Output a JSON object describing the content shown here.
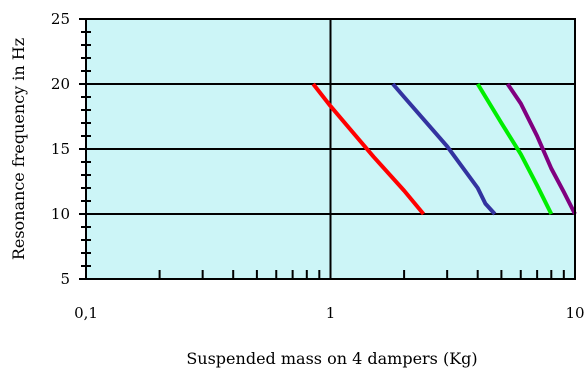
{
  "chart_data": {
    "type": "line",
    "xscale": "log",
    "xlim": [
      0.1,
      10
    ],
    "ylim": [
      5,
      25
    ],
    "xticks": [
      {
        "value": 0.1,
        "label": "0,1"
      },
      {
        "value": 1,
        "label": "1"
      },
      {
        "value": 10,
        "label": "10"
      }
    ],
    "yticks": [
      {
        "value": 5,
        "label": "5"
      },
      {
        "value": 10,
        "label": "10"
      },
      {
        "value": 15,
        "label": "15"
      },
      {
        "value": 20,
        "label": "20"
      },
      {
        "value": 25,
        "label": "25"
      }
    ],
    "xlabel": "Suspended mass on 4 dampers (Kg)",
    "ylabel": "Resonance frequency in Hz",
    "grid": "major",
    "plot_background": "#ccf5f7",
    "series": [
      {
        "color": "#ff0000",
        "points": [
          [
            0.85,
            20
          ],
          [
            1.0,
            18.3
          ],
          [
            1.5,
            14.4
          ],
          [
            2.0,
            11.8
          ],
          [
            2.4,
            10
          ]
        ]
      },
      {
        "color": "#3333a0",
        "points": [
          [
            1.8,
            20
          ],
          [
            2.0,
            19.0
          ],
          [
            3.0,
            15.2
          ],
          [
            4.0,
            12.0
          ],
          [
            4.3,
            10.8
          ],
          [
            4.7,
            10
          ]
        ]
      },
      {
        "color": "#00ee00",
        "points": [
          [
            4.0,
            20
          ],
          [
            5.0,
            17.0
          ],
          [
            6.0,
            14.6
          ],
          [
            7.0,
            12.2
          ],
          [
            8.0,
            10
          ]
        ]
      },
      {
        "color": "#800080",
        "points": [
          [
            5.3,
            20
          ],
          [
            6.0,
            18.5
          ],
          [
            7.0,
            16.0
          ],
          [
            8.0,
            13.5
          ],
          [
            9.0,
            11.7
          ],
          [
            10.0,
            10
          ]
        ]
      }
    ]
  }
}
